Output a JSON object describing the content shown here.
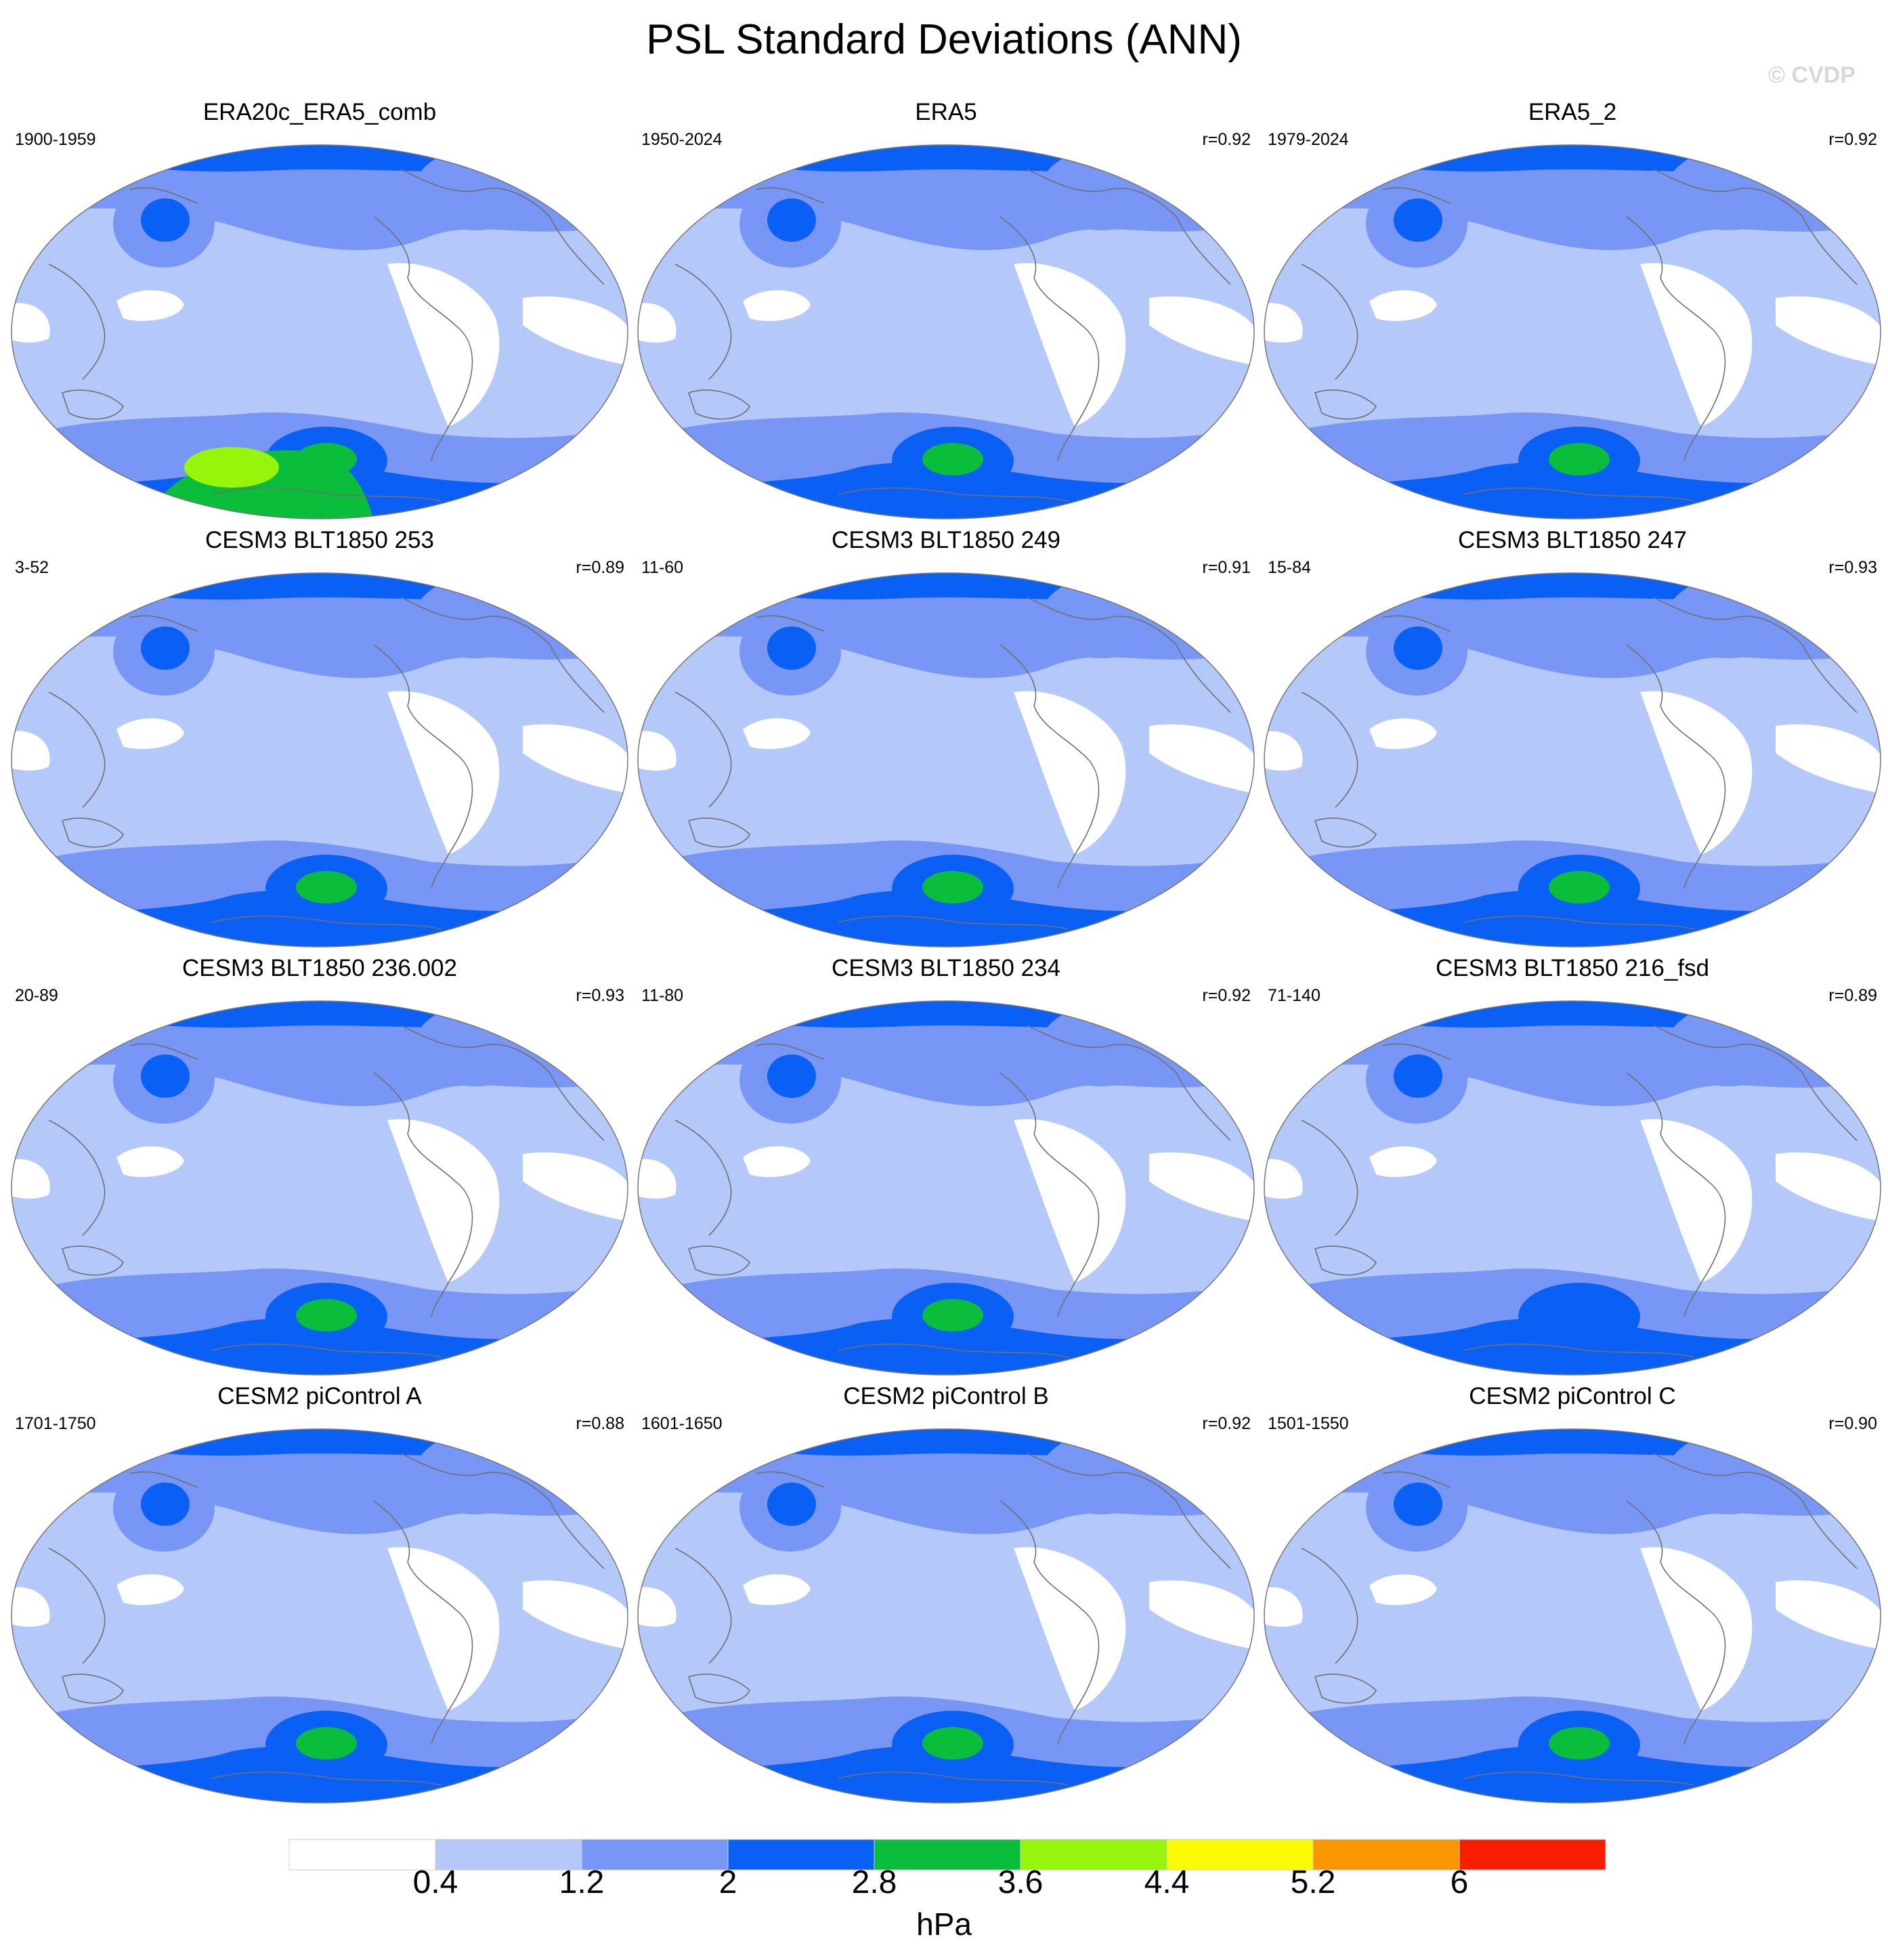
{
  "title": "PSL Standard Deviations (ANN)",
  "credit": "© CVDP",
  "panels": [
    {
      "title": "ERA20c_ERA5_comb",
      "period": "1900-1959",
      "corr": ""
    },
    {
      "title": "ERA5",
      "period": "1950-2024",
      "corr": "r=0.92"
    },
    {
      "title": "ERA5_2",
      "period": "1979-2024",
      "corr": "r=0.92"
    },
    {
      "title": "CESM3 BLT1850 253",
      "period": "3-52",
      "corr": "r=0.89"
    },
    {
      "title": "CESM3 BLT1850 249",
      "period": "11-60",
      "corr": "r=0.91"
    },
    {
      "title": "CESM3 BLT1850 247",
      "period": "15-84",
      "corr": "r=0.93"
    },
    {
      "title": "CESM3 BLT1850 236.002",
      "period": "20-89",
      "corr": "r=0.93"
    },
    {
      "title": "CESM3 BLT1850 234",
      "period": "11-80",
      "corr": "r=0.92"
    },
    {
      "title": "CESM3 BLT1850 216_fsd",
      "period": "71-140",
      "corr": "r=0.89"
    },
    {
      "title": "CESM2 piControl A",
      "period": "1701-1750",
      "corr": "r=0.88"
    },
    {
      "title": "CESM2 piControl B",
      "period": "1601-1650",
      "corr": "r=0.92"
    },
    {
      "title": "CESM2 piControl C",
      "period": "1501-1550",
      "corr": "r=0.90"
    }
  ],
  "colorbar": {
    "units": "hPa",
    "labels": [
      "0.4",
      "1.2",
      "2",
      "2.8",
      "3.6",
      "4.4",
      "5.2",
      "6"
    ],
    "colors": [
      "#ffffff",
      "#b4c8fa",
      "#7896f5",
      "#0a5ff5",
      "#0abe3c",
      "#96f50a",
      "#fafa00",
      "#fa9600",
      "#fa1e00"
    ]
  }
}
